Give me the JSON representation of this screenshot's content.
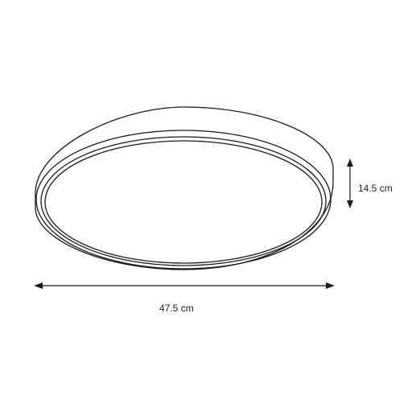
{
  "dimensions": {
    "width_label": "47.5 cm",
    "height_label": "14.5 cm"
  },
  "colors": {
    "line": "#1a1a1a",
    "background": "#ffffff"
  }
}
